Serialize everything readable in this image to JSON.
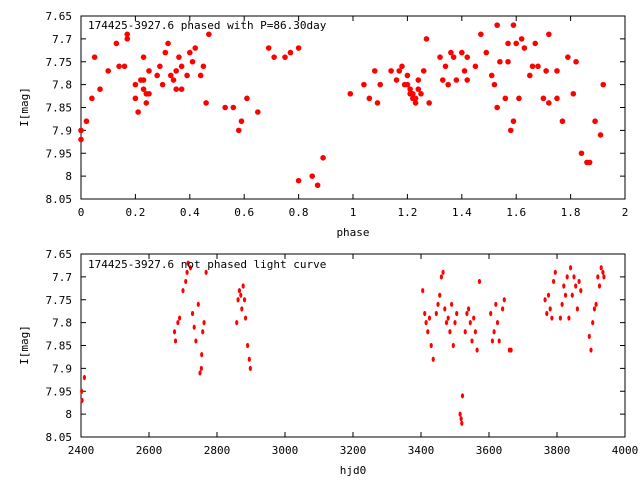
{
  "chart_data": [
    {
      "type": "scatter",
      "title": "174425-3927.6 phased with P=86.30day",
      "xlabel": "phase",
      "ylabel": "I[mag]",
      "xlim": [
        0,
        2
      ],
      "ylim": [
        8.05,
        7.65
      ],
      "y_inverted": true,
      "grid": false,
      "marker_color": "#ff0000",
      "x_ticks": [
        "0",
        "0.2",
        "0.4",
        "0.6",
        "0.8",
        "1",
        "1.2",
        "1.4",
        "1.6",
        "1.8",
        "2"
      ],
      "y_ticks": [
        "7.65",
        "7.7",
        "7.75",
        "7.8",
        "7.85",
        "7.9",
        "7.95",
        "8",
        "8.05"
      ],
      "points": [
        [
          0.0,
          7.9
        ],
        [
          0.0,
          7.92
        ],
        [
          0.02,
          7.88
        ],
        [
          0.04,
          7.83
        ],
        [
          0.05,
          7.74
        ],
        [
          0.07,
          7.81
        ],
        [
          0.1,
          7.77
        ],
        [
          0.13,
          7.71
        ],
        [
          0.14,
          7.76
        ],
        [
          0.16,
          7.76
        ],
        [
          0.17,
          7.7
        ],
        [
          0.17,
          7.69
        ],
        [
          0.2,
          7.8
        ],
        [
          0.2,
          7.83
        ],
        [
          0.21,
          7.86
        ],
        [
          0.22,
          7.79
        ],
        [
          0.23,
          7.79
        ],
        [
          0.23,
          7.74
        ],
        [
          0.23,
          7.81
        ],
        [
          0.24,
          7.84
        ],
        [
          0.24,
          7.82
        ],
        [
          0.25,
          7.77
        ],
        [
          0.25,
          7.82
        ],
        [
          0.28,
          7.78
        ],
        [
          0.29,
          7.76
        ],
        [
          0.3,
          7.8
        ],
        [
          0.31,
          7.73
        ],
        [
          0.32,
          7.71
        ],
        [
          0.33,
          7.78
        ],
        [
          0.34,
          7.79
        ],
        [
          0.35,
          7.77
        ],
        [
          0.35,
          7.81
        ],
        [
          0.36,
          7.74
        ],
        [
          0.37,
          7.76
        ],
        [
          0.37,
          7.81
        ],
        [
          0.39,
          7.78
        ],
        [
          0.4,
          7.73
        ],
        [
          0.41,
          7.75
        ],
        [
          0.42,
          7.72
        ],
        [
          0.44,
          7.78
        ],
        [
          0.45,
          7.76
        ],
        [
          0.46,
          7.84
        ],
        [
          0.47,
          7.69
        ],
        [
          0.53,
          7.85
        ],
        [
          0.56,
          7.85
        ],
        [
          0.58,
          7.9
        ],
        [
          0.59,
          7.88
        ],
        [
          0.61,
          7.83
        ],
        [
          0.65,
          7.86
        ],
        [
          0.69,
          7.72
        ],
        [
          0.71,
          7.74
        ],
        [
          0.75,
          7.74
        ],
        [
          0.77,
          7.73
        ],
        [
          0.8,
          7.72
        ],
        [
          0.8,
          8.01
        ],
        [
          0.85,
          8.0
        ],
        [
          0.87,
          8.02
        ],
        [
          0.89,
          7.96
        ],
        [
          0.99,
          7.82
        ],
        [
          1.04,
          7.8
        ],
        [
          1.06,
          7.83
        ],
        [
          1.08,
          7.77
        ],
        [
          1.09,
          7.84
        ],
        [
          1.1,
          7.8
        ],
        [
          1.14,
          7.77
        ],
        [
          1.16,
          7.79
        ],
        [
          1.17,
          7.77
        ],
        [
          1.18,
          7.76
        ],
        [
          1.19,
          7.8
        ],
        [
          1.2,
          7.78
        ],
        [
          1.2,
          7.8
        ],
        [
          1.21,
          7.81
        ],
        [
          1.21,
          7.82
        ],
        [
          1.22,
          7.83
        ],
        [
          1.22,
          7.82
        ],
        [
          1.23,
          7.83
        ],
        [
          1.23,
          7.84
        ],
        [
          1.24,
          7.81
        ],
        [
          1.24,
          7.79
        ],
        [
          1.25,
          7.82
        ],
        [
          1.26,
          7.77
        ],
        [
          1.28,
          7.84
        ],
        [
          1.27,
          7.7
        ],
        [
          1.32,
          7.74
        ],
        [
          1.33,
          7.79
        ],
        [
          1.34,
          7.76
        ],
        [
          1.35,
          7.8
        ],
        [
          1.36,
          7.73
        ],
        [
          1.37,
          7.74
        ],
        [
          1.38,
          7.79
        ],
        [
          1.4,
          7.73
        ],
        [
          1.41,
          7.77
        ],
        [
          1.42,
          7.74
        ],
        [
          1.42,
          7.79
        ],
        [
          1.45,
          7.76
        ],
        [
          1.47,
          7.69
        ],
        [
          1.49,
          7.73
        ],
        [
          1.51,
          7.78
        ],
        [
          1.52,
          7.8
        ],
        [
          1.53,
          7.67
        ],
        [
          1.53,
          7.85
        ],
        [
          1.54,
          7.75
        ],
        [
          1.56,
          7.83
        ],
        [
          1.57,
          7.75
        ],
        [
          1.57,
          7.71
        ],
        [
          1.58,
          7.9
        ],
        [
          1.59,
          7.67
        ],
        [
          1.59,
          7.88
        ],
        [
          1.6,
          7.71
        ],
        [
          1.61,
          7.83
        ],
        [
          1.62,
          7.7
        ],
        [
          1.63,
          7.72
        ],
        [
          1.65,
          7.78
        ],
        [
          1.66,
          7.76
        ],
        [
          1.67,
          7.71
        ],
        [
          1.68,
          7.76
        ],
        [
          1.7,
          7.83
        ],
        [
          1.71,
          7.77
        ],
        [
          1.72,
          7.69
        ],
        [
          1.72,
          7.84
        ],
        [
          1.75,
          7.77
        ],
        [
          1.75,
          7.83
        ],
        [
          1.77,
          7.88
        ],
        [
          1.79,
          7.74
        ],
        [
          1.81,
          7.82
        ],
        [
          1.82,
          7.75
        ],
        [
          1.84,
          7.95
        ],
        [
          1.86,
          7.97
        ],
        [
          1.87,
          7.97
        ],
        [
          1.89,
          7.88
        ],
        [
          1.91,
          7.91
        ],
        [
          1.92,
          7.8
        ]
      ]
    },
    {
      "type": "scatter",
      "title": "174425-3927.6 not phased light curve",
      "xlabel": "hjd0",
      "ylabel": "I[mag]",
      "xlim": [
        2400,
        4000
      ],
      "ylim": [
        8.05,
        7.65
      ],
      "y_inverted": true,
      "grid": false,
      "marker_color": "#ff0000",
      "x_ticks": [
        "2400",
        "2600",
        "2800",
        "3000",
        "3200",
        "3400",
        "3600",
        "3800",
        "4000"
      ],
      "y_ticks": [
        "7.65",
        "7.7",
        "7.75",
        "7.8",
        "7.85",
        "7.9",
        "7.95",
        "8",
        "8.05"
      ],
      "points": [
        [
          2402,
          7.95
        ],
        [
          2403,
          7.97
        ],
        [
          2410,
          7.92
        ],
        [
          2675,
          7.82
        ],
        [
          2678,
          7.84
        ],
        [
          2685,
          7.8
        ],
        [
          2690,
          7.79
        ],
        [
          2700,
          7.73
        ],
        [
          2708,
          7.71
        ],
        [
          2712,
          7.69
        ],
        [
          2715,
          7.67
        ],
        [
          2722,
          7.68
        ],
        [
          2728,
          7.78
        ],
        [
          2733,
          7.81
        ],
        [
          2738,
          7.84
        ],
        [
          2745,
          7.76
        ],
        [
          2750,
          7.91
        ],
        [
          2754,
          7.9
        ],
        [
          2755,
          7.87
        ],
        [
          2758,
          7.82
        ],
        [
          2762,
          7.8
        ],
        [
          2768,
          7.69
        ],
        [
          2858,
          7.8
        ],
        [
          2862,
          7.75
        ],
        [
          2866,
          7.73
        ],
        [
          2870,
          7.74
        ],
        [
          2873,
          7.77
        ],
        [
          2877,
          7.72
        ],
        [
          2881,
          7.75
        ],
        [
          2884,
          7.79
        ],
        [
          2890,
          7.85
        ],
        [
          2895,
          7.88
        ],
        [
          2898,
          7.9
        ],
        [
          3405,
          7.73
        ],
        [
          3411,
          7.78
        ],
        [
          3415,
          7.8
        ],
        [
          3420,
          7.82
        ],
        [
          3425,
          7.79
        ],
        [
          3430,
          7.85
        ],
        [
          3436,
          7.88
        ],
        [
          3445,
          7.78
        ],
        [
          3450,
          7.76
        ],
        [
          3455,
          7.74
        ],
        [
          3460,
          7.7
        ],
        [
          3465,
          7.69
        ],
        [
          3470,
          7.77
        ],
        [
          3475,
          7.8
        ],
        [
          3480,
          7.79
        ],
        [
          3485,
          7.82
        ],
        [
          3490,
          7.76
        ],
        [
          3495,
          7.85
        ],
        [
          3500,
          7.8
        ],
        [
          3505,
          7.78
        ],
        [
          3515,
          8.0
        ],
        [
          3518,
          8.01
        ],
        [
          3520,
          8.02
        ],
        [
          3522,
          7.96
        ],
        [
          3530,
          7.82
        ],
        [
          3535,
          7.78
        ],
        [
          3540,
          7.77
        ],
        [
          3545,
          7.8
        ],
        [
          3550,
          7.84
        ],
        [
          3555,
          7.79
        ],
        [
          3560,
          7.82
        ],
        [
          3565,
          7.86
        ],
        [
          3572,
          7.71
        ],
        [
          3605,
          7.78
        ],
        [
          3610,
          7.84
        ],
        [
          3615,
          7.82
        ],
        [
          3620,
          7.76
        ],
        [
          3625,
          7.8
        ],
        [
          3630,
          7.84
        ],
        [
          3640,
          7.77
        ],
        [
          3645,
          7.75
        ],
        [
          3660,
          7.86
        ],
        [
          3665,
          7.86
        ],
        [
          3765,
          7.75
        ],
        [
          3770,
          7.78
        ],
        [
          3775,
          7.74
        ],
        [
          3780,
          7.77
        ],
        [
          3785,
          7.79
        ],
        [
          3790,
          7.71
        ],
        [
          3795,
          7.69
        ],
        [
          3810,
          7.79
        ],
        [
          3815,
          7.76
        ],
        [
          3820,
          7.72
        ],
        [
          3825,
          7.74
        ],
        [
          3830,
          7.7
        ],
        [
          3835,
          7.79
        ],
        [
          3840,
          7.68
        ],
        [
          3845,
          7.74
        ],
        [
          3850,
          7.7
        ],
        [
          3855,
          7.72
        ],
        [
          3860,
          7.77
        ],
        [
          3865,
          7.71
        ],
        [
          3870,
          7.73
        ],
        [
          3895,
          7.83
        ],
        [
          3900,
          7.86
        ],
        [
          3905,
          7.8
        ],
        [
          3910,
          7.77
        ],
        [
          3915,
          7.76
        ],
        [
          3920,
          7.7
        ],
        [
          3925,
          7.72
        ],
        [
          3930,
          7.68
        ],
        [
          3935,
          7.69
        ],
        [
          3938,
          7.7
        ]
      ]
    }
  ]
}
